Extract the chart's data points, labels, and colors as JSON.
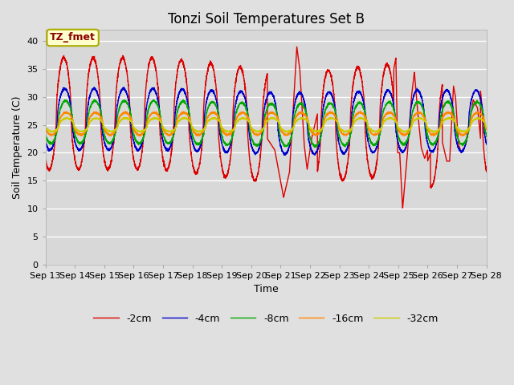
{
  "title": "Tonzi Soil Temperatures Set B",
  "xlabel": "Time",
  "ylabel": "Soil Temperature (C)",
  "ylim": [
    0,
    42
  ],
  "yticks": [
    0,
    5,
    10,
    15,
    20,
    25,
    30,
    35,
    40
  ],
  "annotation_text": "TZ_fmet",
  "annotation_box_color": "#ffffcc",
  "annotation_text_color": "#880000",
  "annotation_border_color": "#aaaa00",
  "series_labels": [
    "-2cm",
    "-4cm",
    "-8cm",
    "-16cm",
    "-32cm"
  ],
  "series_colors": [
    "#dd0000",
    "#0000cc",
    "#00aa00",
    "#ff8800",
    "#cccc00"
  ],
  "background_color": "#e0e0e0",
  "plot_bg_color": "#d8d8d8",
  "grid_color": "#ffffff",
  "title_fontsize": 12,
  "axis_fontsize": 9,
  "tick_fontsize": 8,
  "legend_fontsize": 9,
  "start_day": 13,
  "n_days": 16
}
